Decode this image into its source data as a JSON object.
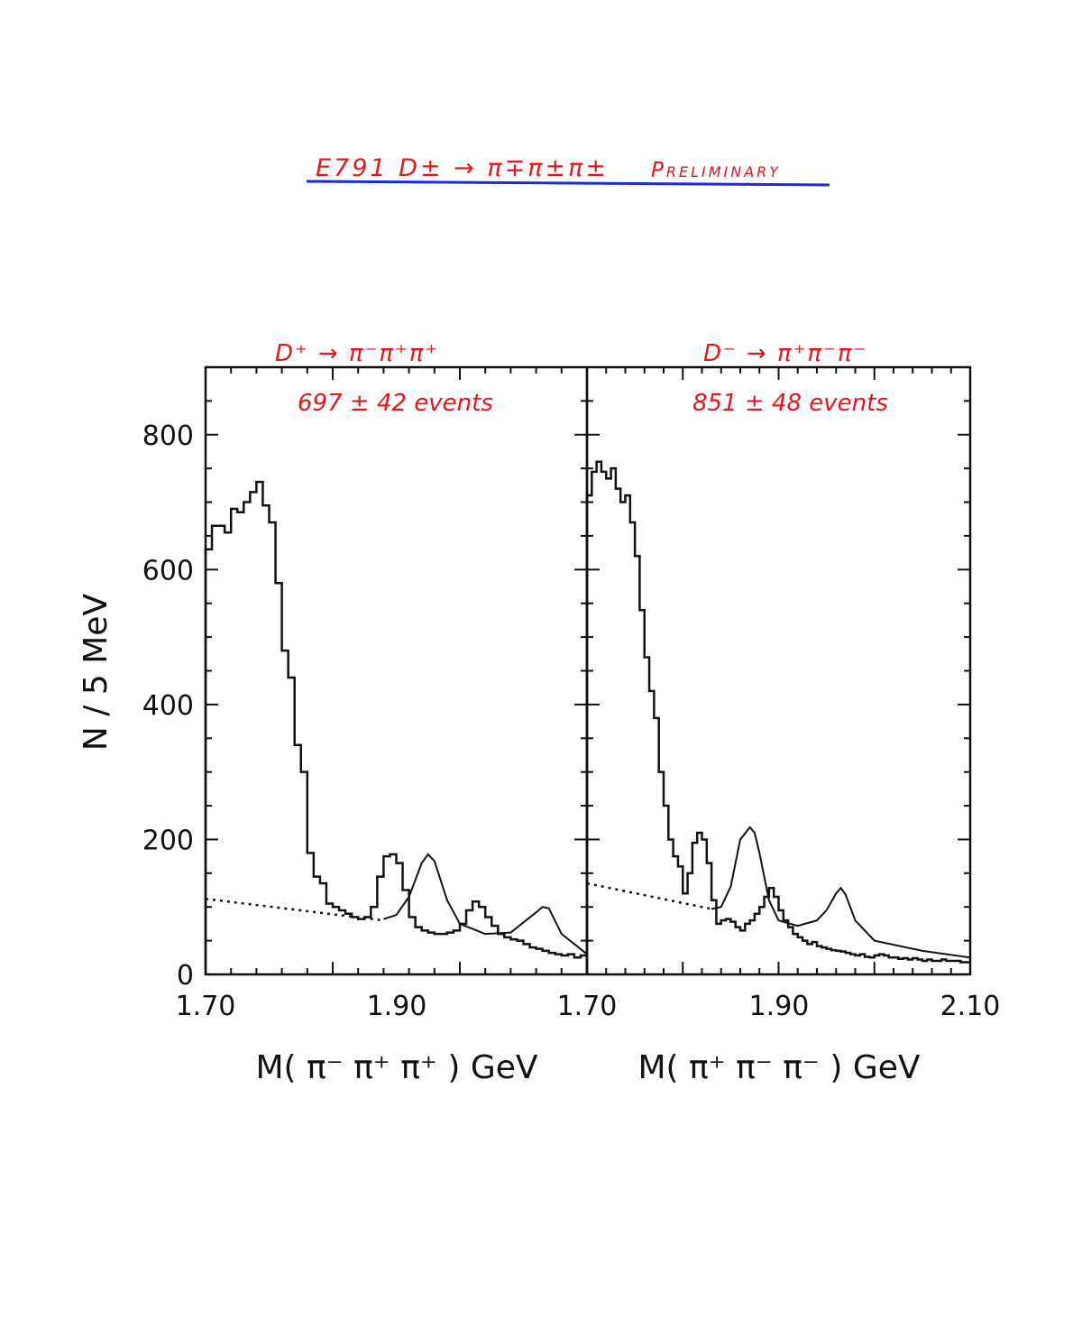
{
  "header": {
    "title": "E791  D± → π∓π±π±",
    "tag": "Preliminary",
    "underline_color": "#1a2bd6",
    "ink_color": "#e8141c"
  },
  "ylabel": "N / 5 MeV",
  "chart_data": [
    {
      "type": "histogram",
      "title": "D⁺ →  π⁻π⁺π⁺",
      "annotation": "697 ± 42  events",
      "xlabel": "M( π⁻ π⁺ π⁺ )  GeV",
      "ylabel": "N / 5 MeV",
      "xlim": [
        1.7,
        2.0
      ],
      "ylim": [
        0,
        900
      ],
      "xticks": [
        "1.70",
        "1.90",
        "1.70"
      ],
      "yticks": [
        "0",
        "200",
        "400",
        "600",
        "800"
      ],
      "bin_width": 0.005,
      "bin_start": 1.7,
      "counts": [
        630,
        665,
        665,
        655,
        690,
        685,
        700,
        715,
        730,
        695,
        670,
        580,
        480,
        440,
        340,
        300,
        180,
        145,
        135,
        105,
        100,
        95,
        90,
        85,
        82,
        85,
        100,
        145,
        175,
        178,
        165,
        125,
        85,
        70,
        65,
        62,
        60,
        60,
        62,
        65,
        75,
        95,
        108,
        100,
        85,
        72,
        60,
        55,
        52,
        50,
        45,
        40,
        38,
        35,
        32,
        30,
        28,
        30,
        25,
        28
      ],
      "background": {
        "style": "dotted",
        "x": [
          1.7,
          1.84
        ],
        "y": [
          112,
          80
        ]
      },
      "fit": {
        "x": [
          1.84,
          1.85,
          1.86,
          1.87,
          1.875,
          1.88,
          1.89,
          1.9,
          1.92,
          1.94,
          1.96,
          1.965,
          1.97,
          1.98,
          2.0
        ],
        "y": [
          82,
          88,
          115,
          165,
          178,
          168,
          110,
          75,
          60,
          62,
          92,
          100,
          98,
          60,
          30
        ]
      }
    },
    {
      "type": "histogram",
      "title": "D⁻ → π⁺π⁻π⁻",
      "annotation": "851 ± 48  events",
      "xlabel": "M( π⁺ π⁻ π⁻ )  GeV",
      "ylabel": "N / 5 MeV",
      "xlim": [
        1.7,
        2.1
      ],
      "ylim": [
        0,
        900
      ],
      "xticks": [
        "1.90",
        "2.10"
      ],
      "yticks": [
        "0",
        "200",
        "400",
        "600",
        "800"
      ],
      "bin_width": 0.005,
      "bin_start": 1.7,
      "counts": [
        710,
        745,
        760,
        745,
        735,
        750,
        720,
        700,
        710,
        670,
        620,
        540,
        470,
        420,
        380,
        300,
        250,
        200,
        175,
        160,
        120,
        150,
        195,
        210,
        200,
        165,
        110,
        75,
        80,
        82,
        78,
        70,
        65,
        75,
        80,
        90,
        100,
        115,
        128,
        115,
        95,
        80,
        70,
        60,
        55,
        50,
        45,
        48,
        42,
        40,
        38,
        36,
        35,
        34,
        32,
        30,
        28,
        30,
        26,
        25,
        28,
        30,
        28,
        25,
        25,
        23,
        24,
        22,
        24,
        22,
        20,
        22,
        20,
        20,
        22,
        20,
        20,
        20,
        18,
        18
      ],
      "background": {
        "style": "dotted",
        "x": [
          1.7,
          1.83
        ],
        "y": [
          135,
          97
        ]
      },
      "fit": {
        "x": [
          1.83,
          1.84,
          1.85,
          1.86,
          1.87,
          1.875,
          1.88,
          1.89,
          1.9,
          1.92,
          1.94,
          1.95,
          1.96,
          1.965,
          1.97,
          1.98,
          2.0,
          2.05,
          2.1
        ],
        "y": [
          97,
          100,
          130,
          200,
          218,
          210,
          180,
          110,
          80,
          72,
          80,
          95,
          120,
          128,
          118,
          80,
          50,
          35,
          25
        ]
      }
    }
  ]
}
